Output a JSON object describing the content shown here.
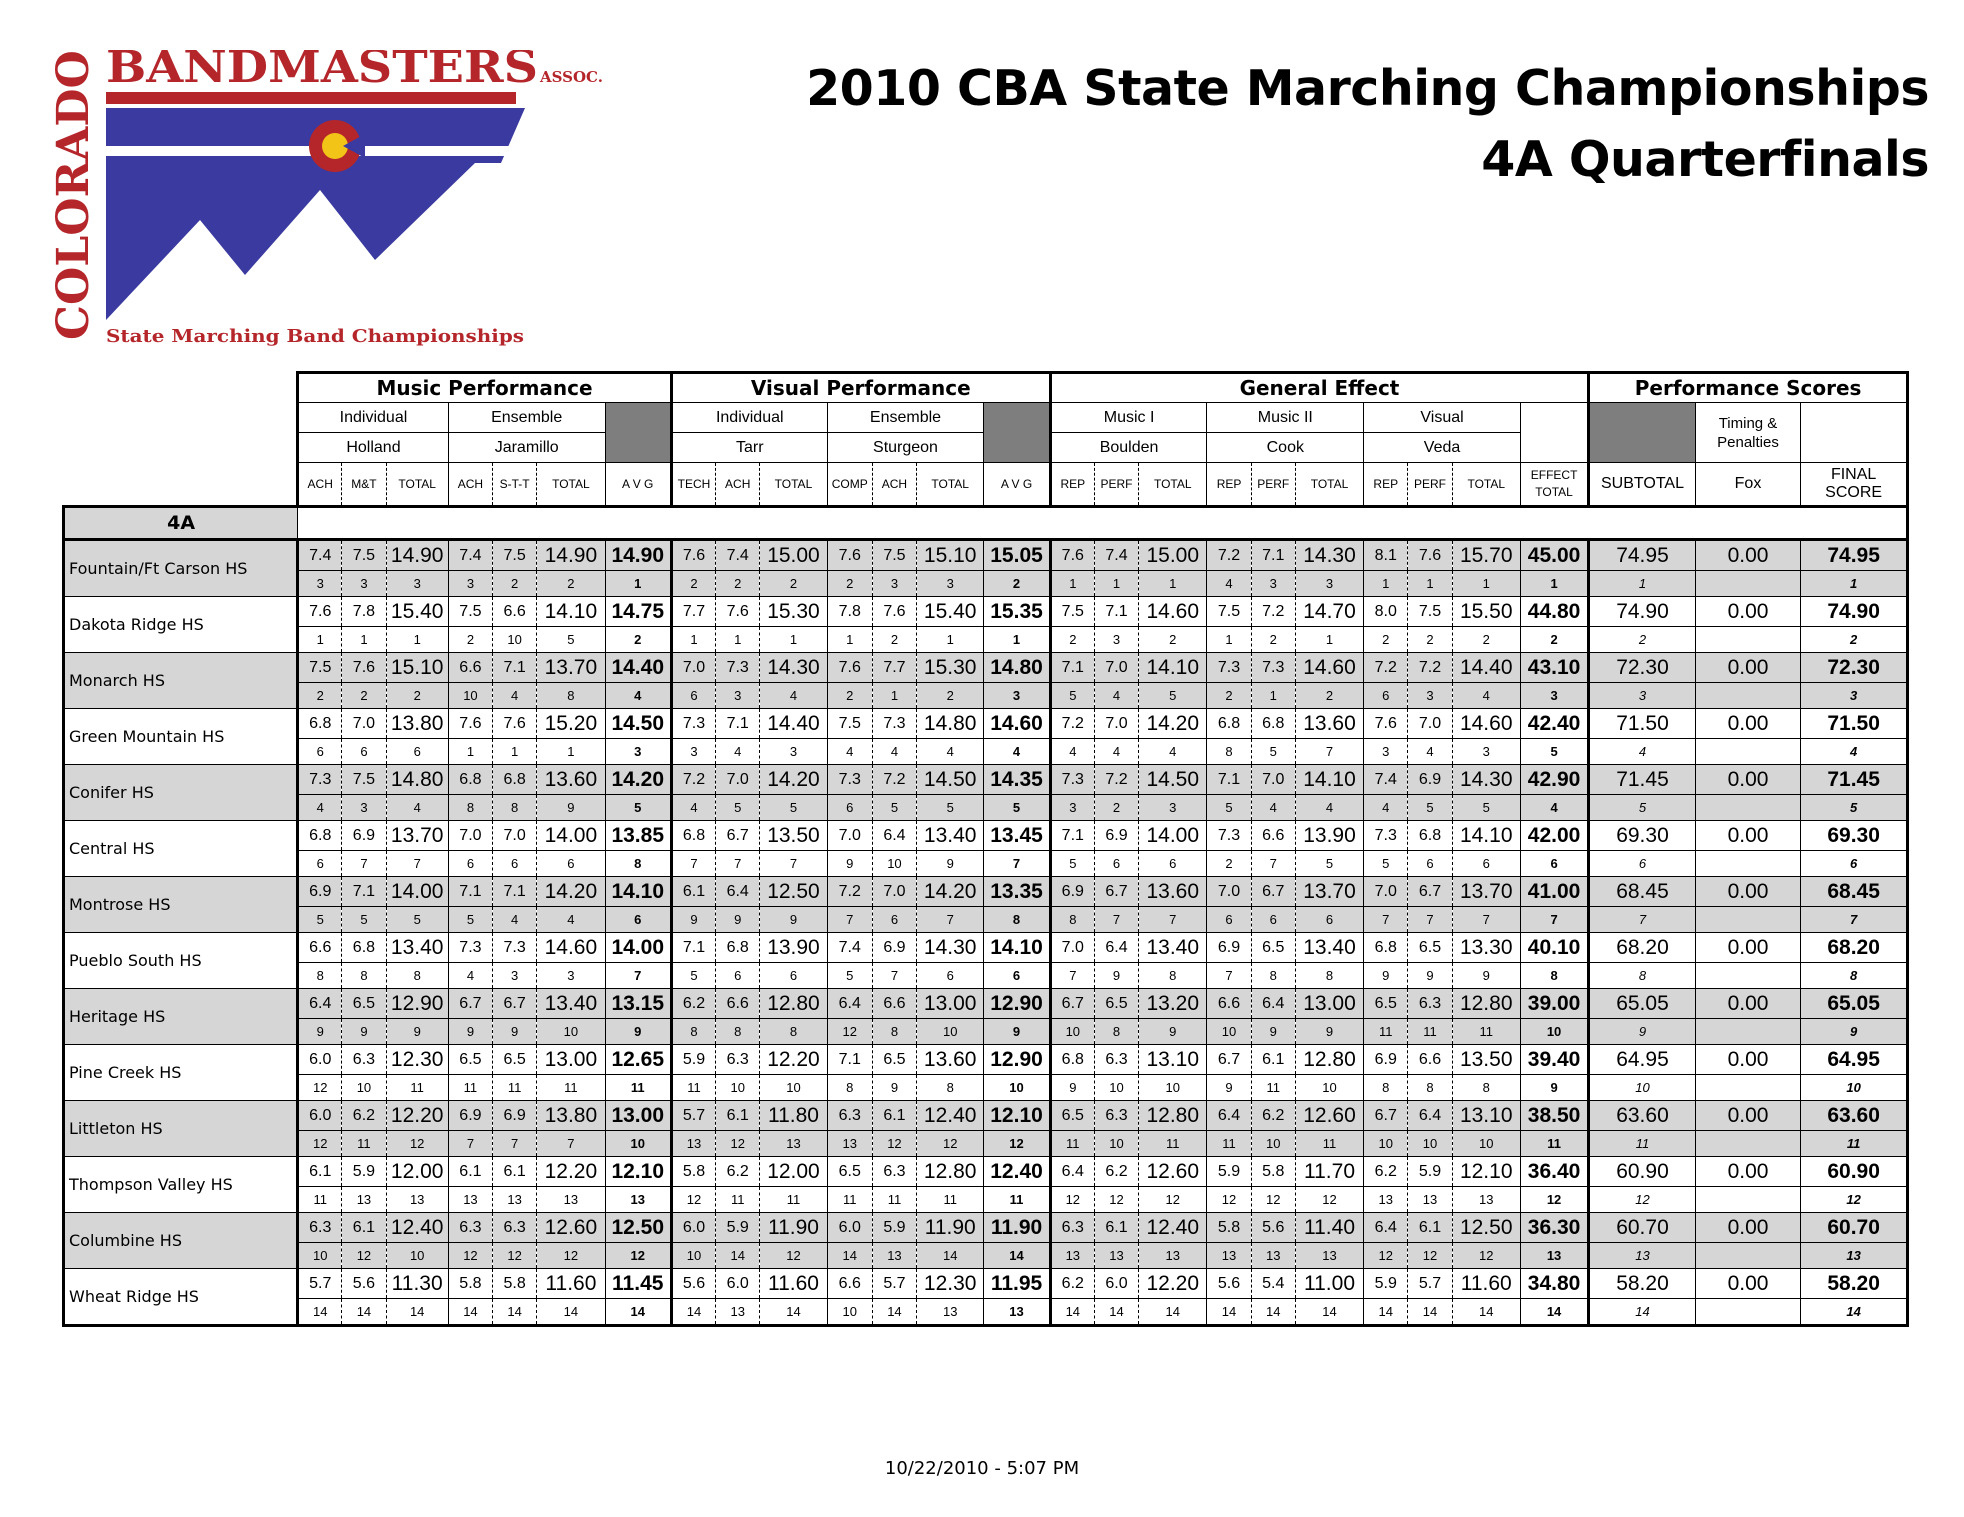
{
  "logo": {
    "state_text": "COLORADO",
    "org_text": "BANDMASTERS",
    "assoc_text": "ASSOC.",
    "tagline": "State Marching Band Championships",
    "colors": {
      "red": "#b5262b",
      "blue": "#3a3aa0",
      "gold": "#f2c417",
      "white": "#ffffff"
    }
  },
  "title_line1": "2010 CBA State Marching Championships",
  "title_line2": "4A Quarterfinals",
  "footer_timestamp": "10/22/2010 - 5:07 PM",
  "category": "4A",
  "header": {
    "sections": [
      {
        "label": "Music Performance",
        "span": 7
      },
      {
        "label": "Visual Performance",
        "span": 7
      },
      {
        "label": "General Effect",
        "span": 10
      },
      {
        "label": "Performance Scores",
        "span": 3
      }
    ],
    "subgroups": [
      {
        "type": "Individual",
        "judge": "Holland",
        "span": 3
      },
      {
        "type": "Ensemble",
        "judge": "Jaramillo",
        "span": 3
      },
      {
        "type": "",
        "judge": "",
        "span": 1,
        "dark": true
      },
      {
        "type": "Individual",
        "judge": "Tarr",
        "span": 3
      },
      {
        "type": "Ensemble",
        "judge": "Sturgeon",
        "span": 3
      },
      {
        "type": "",
        "judge": "",
        "span": 1,
        "dark": true
      },
      {
        "type": "Music I",
        "judge": "Boulden",
        "span": 3
      },
      {
        "type": "Music II",
        "judge": "Cook",
        "span": 3
      },
      {
        "type": "Visual",
        "judge": "Veda",
        "span": 3
      },
      {
        "type": "",
        "judge": "",
        "span": 1
      }
    ],
    "perf_subgroups": [
      {
        "label": "",
        "dark": true
      },
      {
        "label": "Timing & Penalties",
        "judge": "Fox"
      },
      {
        "label": ""
      }
    ],
    "columns": [
      "ACH",
      "M&T",
      "TOTAL",
      "ACH",
      "S-T-T",
      "TOTAL",
      "A V G",
      "TECH",
      "ACH",
      "TOTAL",
      "COMP",
      "ACH",
      "TOTAL",
      "A V G",
      "REP",
      "PERF",
      "TOTAL",
      "REP",
      "PERF",
      "TOTAL",
      "REP",
      "PERF",
      "TOTAL",
      "EFFECT TOTAL",
      "SUBTOTAL",
      "Fox",
      "FINAL SCORE"
    ]
  },
  "rows": [
    {
      "school": "Fountain/Ft Carson HS",
      "scores": [
        "7.4",
        "7.5",
        "14.90",
        "7.4",
        "7.5",
        "14.90",
        "14.90",
        "7.6",
        "7.4",
        "15.00",
        "7.6",
        "7.5",
        "15.10",
        "15.05",
        "7.6",
        "7.4",
        "15.00",
        "7.2",
        "7.1",
        "14.30",
        "8.1",
        "7.6",
        "15.70",
        "45.00",
        "74.95",
        "0.00",
        "74.95"
      ],
      "ranks": [
        "3",
        "3",
        "3",
        "3",
        "2",
        "2",
        "1",
        "2",
        "2",
        "2",
        "2",
        "3",
        "3",
        "2",
        "1",
        "1",
        "1",
        "4",
        "3",
        "3",
        "1",
        "1",
        "1",
        "1",
        "1",
        "",
        "1"
      ]
    },
    {
      "school": "Dakota Ridge HS",
      "scores": [
        "7.6",
        "7.8",
        "15.40",
        "7.5",
        "6.6",
        "14.10",
        "14.75",
        "7.7",
        "7.6",
        "15.30",
        "7.8",
        "7.6",
        "15.40",
        "15.35",
        "7.5",
        "7.1",
        "14.60",
        "7.5",
        "7.2",
        "14.70",
        "8.0",
        "7.5",
        "15.50",
        "44.80",
        "74.90",
        "0.00",
        "74.90"
      ],
      "ranks": [
        "1",
        "1",
        "1",
        "2",
        "10",
        "5",
        "2",
        "1",
        "1",
        "1",
        "1",
        "2",
        "1",
        "1",
        "2",
        "3",
        "2",
        "1",
        "2",
        "1",
        "2",
        "2",
        "2",
        "2",
        "2",
        "",
        "2"
      ]
    },
    {
      "school": "Monarch HS",
      "scores": [
        "7.5",
        "7.6",
        "15.10",
        "6.6",
        "7.1",
        "13.70",
        "14.40",
        "7.0",
        "7.3",
        "14.30",
        "7.6",
        "7.7",
        "15.30",
        "14.80",
        "7.1",
        "7.0",
        "14.10",
        "7.3",
        "7.3",
        "14.60",
        "7.2",
        "7.2",
        "14.40",
        "43.10",
        "72.30",
        "0.00",
        "72.30"
      ],
      "ranks": [
        "2",
        "2",
        "2",
        "10",
        "4",
        "8",
        "4",
        "6",
        "3",
        "4",
        "2",
        "1",
        "2",
        "3",
        "5",
        "4",
        "5",
        "2",
        "1",
        "2",
        "6",
        "3",
        "4",
        "3",
        "3",
        "",
        "3"
      ]
    },
    {
      "school": "Green Mountain HS",
      "scores": [
        "6.8",
        "7.0",
        "13.80",
        "7.6",
        "7.6",
        "15.20",
        "14.50",
        "7.3",
        "7.1",
        "14.40",
        "7.5",
        "7.3",
        "14.80",
        "14.60",
        "7.2",
        "7.0",
        "14.20",
        "6.8",
        "6.8",
        "13.60",
        "7.6",
        "7.0",
        "14.60",
        "42.40",
        "71.50",
        "0.00",
        "71.50"
      ],
      "ranks": [
        "6",
        "6",
        "6",
        "1",
        "1",
        "1",
        "3",
        "3",
        "4",
        "3",
        "4",
        "4",
        "4",
        "4",
        "4",
        "4",
        "4",
        "8",
        "5",
        "7",
        "3",
        "4",
        "3",
        "5",
        "4",
        "",
        "4"
      ]
    },
    {
      "school": "Conifer HS",
      "scores": [
        "7.3",
        "7.5",
        "14.80",
        "6.8",
        "6.8",
        "13.60",
        "14.20",
        "7.2",
        "7.0",
        "14.20",
        "7.3",
        "7.2",
        "14.50",
        "14.35",
        "7.3",
        "7.2",
        "14.50",
        "7.1",
        "7.0",
        "14.10",
        "7.4",
        "6.9",
        "14.30",
        "42.90",
        "71.45",
        "0.00",
        "71.45"
      ],
      "ranks": [
        "4",
        "3",
        "4",
        "8",
        "8",
        "9",
        "5",
        "4",
        "5",
        "5",
        "6",
        "5",
        "5",
        "5",
        "3",
        "2",
        "3",
        "5",
        "4",
        "4",
        "4",
        "5",
        "5",
        "4",
        "5",
        "",
        "5"
      ]
    },
    {
      "school": "Central HS",
      "scores": [
        "6.8",
        "6.9",
        "13.70",
        "7.0",
        "7.0",
        "14.00",
        "13.85",
        "6.8",
        "6.7",
        "13.50",
        "7.0",
        "6.4",
        "13.40",
        "13.45",
        "7.1",
        "6.9",
        "14.00",
        "7.3",
        "6.6",
        "13.90",
        "7.3",
        "6.8",
        "14.10",
        "42.00",
        "69.30",
        "0.00",
        "69.30"
      ],
      "ranks": [
        "6",
        "7",
        "7",
        "6",
        "6",
        "6",
        "8",
        "7",
        "7",
        "7",
        "9",
        "10",
        "9",
        "7",
        "5",
        "6",
        "6",
        "2",
        "7",
        "5",
        "5",
        "6",
        "6",
        "6",
        "6",
        "",
        "6"
      ]
    },
    {
      "school": "Montrose HS",
      "scores": [
        "6.9",
        "7.1",
        "14.00",
        "7.1",
        "7.1",
        "14.20",
        "14.10",
        "6.1",
        "6.4",
        "12.50",
        "7.2",
        "7.0",
        "14.20",
        "13.35",
        "6.9",
        "6.7",
        "13.60",
        "7.0",
        "6.7",
        "13.70",
        "7.0",
        "6.7",
        "13.70",
        "41.00",
        "68.45",
        "0.00",
        "68.45"
      ],
      "ranks": [
        "5",
        "5",
        "5",
        "5",
        "4",
        "4",
        "6",
        "9",
        "9",
        "9",
        "7",
        "6",
        "7",
        "8",
        "8",
        "7",
        "7",
        "6",
        "6",
        "6",
        "7",
        "7",
        "7",
        "7",
        "7",
        "",
        "7"
      ]
    },
    {
      "school": "Pueblo South HS",
      "scores": [
        "6.6",
        "6.8",
        "13.40",
        "7.3",
        "7.3",
        "14.60",
        "14.00",
        "7.1",
        "6.8",
        "13.90",
        "7.4",
        "6.9",
        "14.30",
        "14.10",
        "7.0",
        "6.4",
        "13.40",
        "6.9",
        "6.5",
        "13.40",
        "6.8",
        "6.5",
        "13.30",
        "40.10",
        "68.20",
        "0.00",
        "68.20"
      ],
      "ranks": [
        "8",
        "8",
        "8",
        "4",
        "3",
        "3",
        "7",
        "5",
        "6",
        "6",
        "5",
        "7",
        "6",
        "6",
        "7",
        "9",
        "8",
        "7",
        "8",
        "8",
        "9",
        "9",
        "9",
        "8",
        "8",
        "",
        "8"
      ]
    },
    {
      "school": "Heritage HS",
      "scores": [
        "6.4",
        "6.5",
        "12.90",
        "6.7",
        "6.7",
        "13.40",
        "13.15",
        "6.2",
        "6.6",
        "12.80",
        "6.4",
        "6.6",
        "13.00",
        "12.90",
        "6.7",
        "6.5",
        "13.20",
        "6.6",
        "6.4",
        "13.00",
        "6.5",
        "6.3",
        "12.80",
        "39.00",
        "65.05",
        "0.00",
        "65.05"
      ],
      "ranks": [
        "9",
        "9",
        "9",
        "9",
        "9",
        "10",
        "9",
        "8",
        "8",
        "8",
        "12",
        "8",
        "10",
        "9",
        "10",
        "8",
        "9",
        "10",
        "9",
        "9",
        "11",
        "11",
        "11",
        "10",
        "9",
        "",
        "9"
      ]
    },
    {
      "school": "Pine Creek HS",
      "scores": [
        "6.0",
        "6.3",
        "12.30",
        "6.5",
        "6.5",
        "13.00",
        "12.65",
        "5.9",
        "6.3",
        "12.20",
        "7.1",
        "6.5",
        "13.60",
        "12.90",
        "6.8",
        "6.3",
        "13.10",
        "6.7",
        "6.1",
        "12.80",
        "6.9",
        "6.6",
        "13.50",
        "39.40",
        "64.95",
        "0.00",
        "64.95"
      ],
      "ranks": [
        "12",
        "10",
        "11",
        "11",
        "11",
        "11",
        "11",
        "11",
        "10",
        "10",
        "8",
        "9",
        "8",
        "10",
        "9",
        "10",
        "10",
        "9",
        "11",
        "10",
        "8",
        "8",
        "8",
        "9",
        "10",
        "",
        "10"
      ]
    },
    {
      "school": "Littleton HS",
      "scores": [
        "6.0",
        "6.2",
        "12.20",
        "6.9",
        "6.9",
        "13.80",
        "13.00",
        "5.7",
        "6.1",
        "11.80",
        "6.3",
        "6.1",
        "12.40",
        "12.10",
        "6.5",
        "6.3",
        "12.80",
        "6.4",
        "6.2",
        "12.60",
        "6.7",
        "6.4",
        "13.10",
        "38.50",
        "63.60",
        "0.00",
        "63.60"
      ],
      "ranks": [
        "12",
        "11",
        "12",
        "7",
        "7",
        "7",
        "10",
        "13",
        "12",
        "13",
        "13",
        "12",
        "12",
        "12",
        "11",
        "10",
        "11",
        "11",
        "10",
        "11",
        "10",
        "10",
        "10",
        "11",
        "11",
        "",
        "11"
      ]
    },
    {
      "school": "Thompson Valley HS",
      "scores": [
        "6.1",
        "5.9",
        "12.00",
        "6.1",
        "6.1",
        "12.20",
        "12.10",
        "5.8",
        "6.2",
        "12.00",
        "6.5",
        "6.3",
        "12.80",
        "12.40",
        "6.4",
        "6.2",
        "12.60",
        "5.9",
        "5.8",
        "11.70",
        "6.2",
        "5.9",
        "12.10",
        "36.40",
        "60.90",
        "0.00",
        "60.90"
      ],
      "ranks": [
        "11",
        "13",
        "13",
        "13",
        "13",
        "13",
        "13",
        "12",
        "11",
        "11",
        "11",
        "11",
        "11",
        "11",
        "12",
        "12",
        "12",
        "12",
        "12",
        "12",
        "13",
        "13",
        "13",
        "12",
        "12",
        "",
        "12"
      ]
    },
    {
      "school": "Columbine HS",
      "scores": [
        "6.3",
        "6.1",
        "12.40",
        "6.3",
        "6.3",
        "12.60",
        "12.50",
        "6.0",
        "5.9",
        "11.90",
        "6.0",
        "5.9",
        "11.90",
        "11.90",
        "6.3",
        "6.1",
        "12.40",
        "5.8",
        "5.6",
        "11.40",
        "6.4",
        "6.1",
        "12.50",
        "36.30",
        "60.70",
        "0.00",
        "60.70"
      ],
      "ranks": [
        "10",
        "12",
        "10",
        "12",
        "12",
        "12",
        "12",
        "10",
        "14",
        "12",
        "14",
        "13",
        "14",
        "14",
        "13",
        "13",
        "13",
        "13",
        "13",
        "13",
        "12",
        "12",
        "12",
        "13",
        "13",
        "",
        "13"
      ]
    },
    {
      "school": "Wheat Ridge HS",
      "scores": [
        "5.7",
        "5.6",
        "11.30",
        "5.8",
        "5.8",
        "11.60",
        "11.45",
        "5.6",
        "6.0",
        "11.60",
        "6.6",
        "5.7",
        "12.30",
        "11.95",
        "6.2",
        "6.0",
        "12.20",
        "5.6",
        "5.4",
        "11.00",
        "5.9",
        "5.7",
        "11.60",
        "34.80",
        "58.20",
        "0.00",
        "58.20"
      ],
      "ranks": [
        "14",
        "14",
        "14",
        "14",
        "14",
        "14",
        "14",
        "14",
        "13",
        "14",
        "10",
        "14",
        "13",
        "13",
        "14",
        "14",
        "14",
        "14",
        "14",
        "14",
        "14",
        "14",
        "14",
        "14",
        "14",
        "",
        "14"
      ]
    }
  ]
}
